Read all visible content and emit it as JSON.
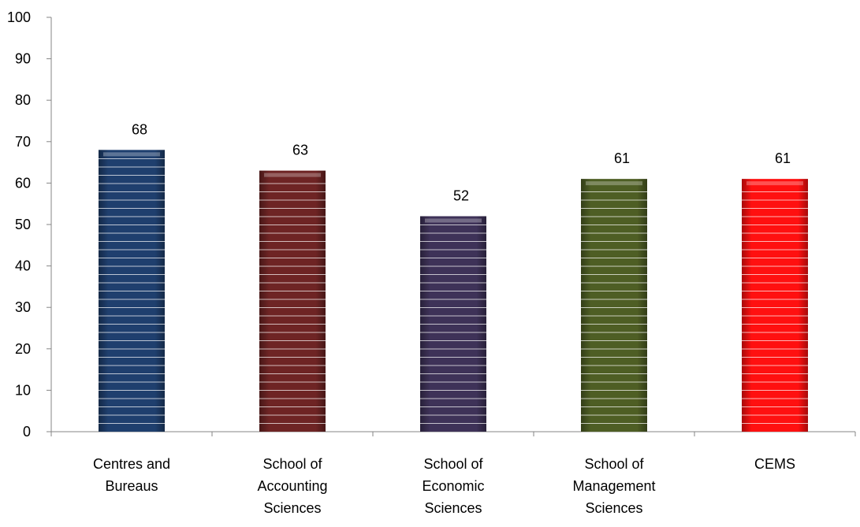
{
  "chart_data": {
    "type": "bar",
    "title": "",
    "xlabel": "",
    "ylabel": "",
    "ylim": [
      0,
      100
    ],
    "yticks": [
      "0",
      "10",
      "20",
      "30",
      "40",
      "50",
      "60",
      "70",
      "80",
      "90",
      "100"
    ],
    "grid": false,
    "legend": "none",
    "categories": [
      [
        "Centres and",
        "Bureaus"
      ],
      [
        "School of",
        "Accounting",
        "Sciences"
      ],
      [
        "School of",
        "Economic",
        "Sciences"
      ],
      [
        "School of",
        "Management",
        "Sciences"
      ],
      [
        "CEMS"
      ]
    ],
    "values": [
      68,
      63,
      52,
      61,
      61
    ],
    "colors": [
      "#1f3f6e",
      "#6e2424",
      "#3e3258",
      "#4e5e24",
      "#ff1010"
    ],
    "data_labels": [
      "68",
      "63",
      "52",
      "61",
      "61"
    ]
  }
}
